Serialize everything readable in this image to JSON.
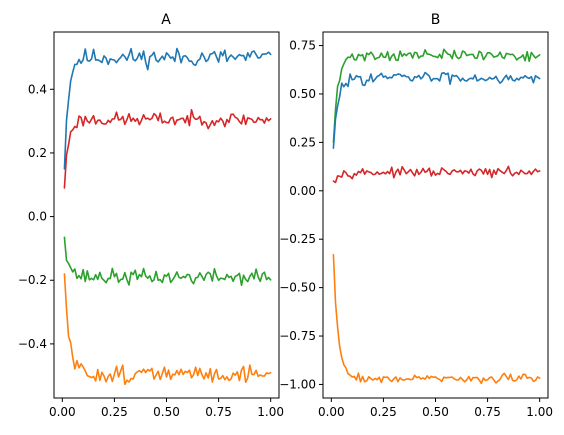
{
  "chart_data": [
    {
      "type": "line",
      "title": "A",
      "xlabel": "",
      "ylabel": "",
      "xlim": [
        -0.04,
        1.04
      ],
      "ylim": [
        -0.57,
        0.58
      ],
      "xticks": [
        0.0,
        0.25,
        0.5,
        0.75,
        1.0
      ],
      "xtick_labels": [
        "0.00",
        "0.25",
        "0.50",
        "0.75",
        "1.00"
      ],
      "yticks": [
        0.4,
        0.2,
        0.0,
        -0.2,
        -0.4
      ],
      "ytick_labels": [
        "0.4",
        "0.2",
        "0.0",
        "−0.2",
        "−0.4"
      ],
      "grid": false,
      "series": [
        {
          "color": "#1f77b4",
          "start": 0.15,
          "level": 0.5,
          "rate": 55,
          "noise": 0.014,
          "seed": 11
        },
        {
          "color": "#d62728",
          "start": 0.09,
          "level": 0.305,
          "rate": 55,
          "noise": 0.011,
          "seed": 23
        },
        {
          "color": "#2ca02c",
          "start": -0.065,
          "level": -0.19,
          "rate": 45,
          "noise": 0.012,
          "seed": 37
        },
        {
          "color": "#ff7f0e",
          "start": -0.18,
          "level": -0.495,
          "rate": 45,
          "noise": 0.014,
          "seed": 51
        }
      ]
    },
    {
      "type": "line",
      "title": "B",
      "xlabel": "",
      "ylabel": "",
      "xlim": [
        -0.04,
        1.04
      ],
      "ylim": [
        -1.07,
        0.82
      ],
      "xticks": [
        0.0,
        0.25,
        0.5,
        0.75,
        1.0
      ],
      "xtick_labels": [
        "0.00",
        "0.25",
        "0.50",
        "0.75",
        "1.00"
      ],
      "yticks": [
        0.75,
        0.5,
        0.25,
        0.0,
        -0.25,
        -0.5,
        -0.75,
        -1.0
      ],
      "ytick_labels": [
        "0.75",
        "0.50",
        "0.25",
        "0.00",
        "−0.25",
        "−0.50",
        "−0.75",
        "−1.00"
      ],
      "grid": false,
      "series": [
        {
          "color": "#2ca02c",
          "start": 0.25,
          "level": 0.7,
          "rate": 45,
          "noise": 0.014,
          "seed": 71
        },
        {
          "color": "#1f77b4",
          "start": 0.22,
          "level": 0.585,
          "rate": 45,
          "noise": 0.015,
          "seed": 83
        },
        {
          "color": "#d62728",
          "start": 0.05,
          "level": 0.095,
          "rate": 45,
          "noise": 0.011,
          "seed": 97
        },
        {
          "color": "#ff7f0e",
          "start": -0.33,
          "level": -0.97,
          "rate": 45,
          "noise": 0.011,
          "seed": 109
        }
      ]
    }
  ]
}
